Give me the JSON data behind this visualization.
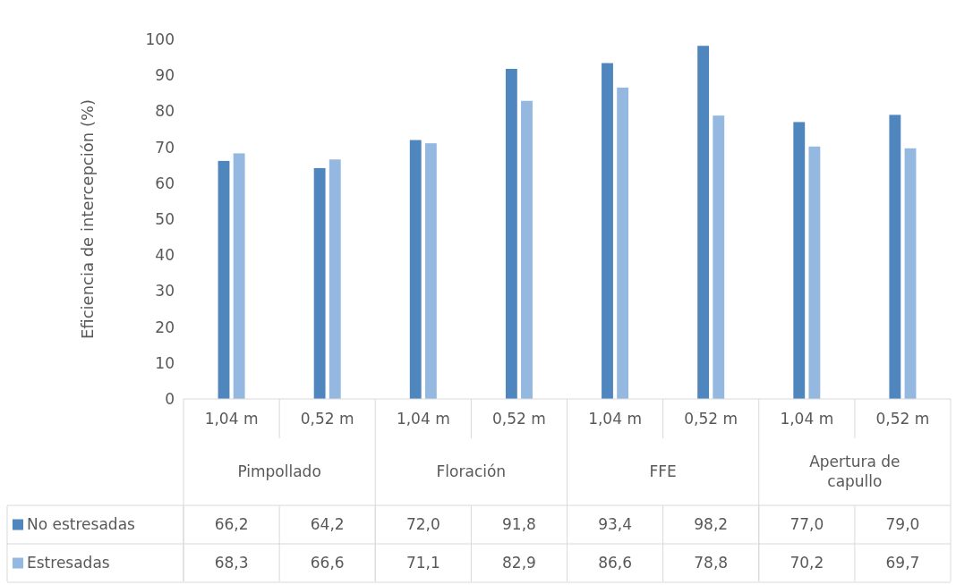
{
  "chart_data": {
    "type": "bar",
    "ylabel": "Eficiencia de intercepción (%)",
    "categories": [
      "1,04 m",
      "0,52 m",
      "1,04 m",
      "0,52 m",
      "1,04 m",
      "0,52 m",
      "1,04 m",
      "0,52 m"
    ],
    "annotations": [
      "Pimpollado",
      "Floración",
      "FFE",
      "Apertura de capullo"
    ],
    "series": [
      {
        "name": "No estresadas",
        "color": "#4f86bd",
        "values": [
          66.2,
          64.2,
          72.0,
          91.8,
          93.4,
          98.2,
          77.0,
          79.0
        ],
        "value_labels": [
          "66,2",
          "64,2",
          "72,0",
          "91,8",
          "93,4",
          "98,2",
          "77,0",
          "79,0"
        ]
      },
      {
        "name": "Estresadas",
        "color": "#94b8e0",
        "values": [
          68.3,
          66.6,
          71.1,
          82.9,
          86.6,
          78.8,
          70.2,
          69.7
        ],
        "value_labels": [
          "68,3",
          "66,6",
          "71,1",
          "82,9",
          "86,6",
          "78,8",
          "70,2",
          "69,7"
        ]
      }
    ],
    "ylim": [
      0,
      100
    ],
    "yticks": [
      0,
      10,
      20,
      30,
      40,
      50,
      60,
      70,
      80,
      90,
      100
    ],
    "legend": "bottom"
  }
}
